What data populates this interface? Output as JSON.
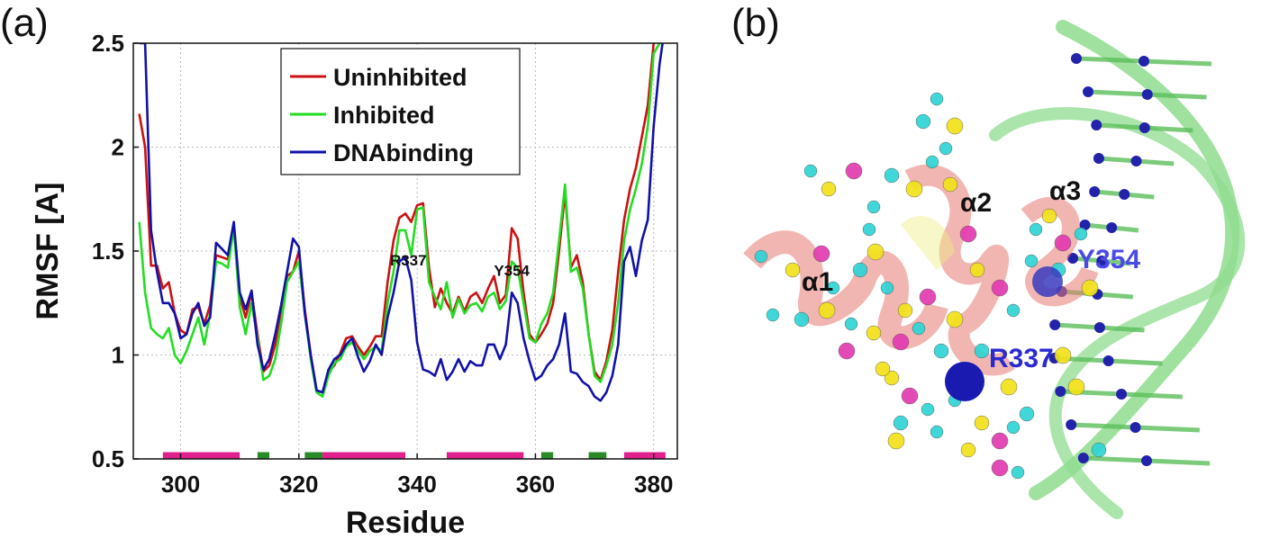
{
  "panels": {
    "a": "(a)",
    "b": "(b)"
  },
  "chart_data": {
    "type": "line",
    "xlabel": "Residue",
    "ylabel": "RMSF [A]",
    "xlim": [
      292,
      384
    ],
    "ylim": [
      0.5,
      2.5
    ],
    "xticks": [
      300,
      320,
      340,
      360,
      380
    ],
    "yticks": [
      0.5,
      1,
      1.5,
      2,
      2.5
    ],
    "ytick_labels": [
      "0.5",
      "1",
      "1.5",
      "2",
      "2.5"
    ],
    "grid": true,
    "legend_position": "top-center",
    "x": [
      293,
      294,
      295,
      296,
      297,
      298,
      299,
      300,
      301,
      302,
      303,
      304,
      305,
      306,
      307,
      308,
      309,
      310,
      311,
      312,
      313,
      314,
      315,
      316,
      317,
      318,
      319,
      320,
      321,
      322,
      323,
      324,
      325,
      326,
      327,
      328,
      329,
      330,
      331,
      332,
      333,
      334,
      335,
      336,
      337,
      338,
      339,
      340,
      341,
      342,
      343,
      344,
      345,
      346,
      347,
      348,
      349,
      350,
      351,
      352,
      353,
      354,
      355,
      356,
      357,
      358,
      359,
      360,
      361,
      362,
      363,
      364,
      365,
      366,
      367,
      368,
      369,
      370,
      371,
      372,
      373,
      374,
      375,
      376,
      377,
      378,
      379,
      380,
      381,
      382
    ],
    "series": [
      {
        "name": "Uninhibited",
        "color": "#cc1111",
        "values": [
          2.16,
          2.0,
          1.43,
          1.43,
          1.32,
          1.35,
          1.2,
          1.12,
          1.1,
          1.22,
          1.23,
          1.15,
          1.24,
          1.48,
          1.47,
          1.46,
          1.62,
          1.28,
          1.18,
          1.3,
          1.1,
          0.92,
          0.95,
          1.05,
          1.22,
          1.38,
          1.4,
          1.5,
          1.22,
          1.0,
          0.83,
          0.82,
          0.92,
          0.95,
          1.01,
          1.08,
          1.09,
          1.04,
          1.0,
          1.04,
          1.09,
          1.09,
          1.35,
          1.55,
          1.66,
          1.68,
          1.64,
          1.72,
          1.73,
          1.42,
          1.23,
          1.32,
          1.25,
          1.2,
          1.28,
          1.21,
          1.28,
          1.3,
          1.25,
          1.32,
          1.38,
          1.25,
          1.29,
          1.61,
          1.56,
          1.3,
          1.1,
          1.06,
          1.1,
          1.15,
          1.25,
          1.5,
          1.78,
          1.42,
          1.48,
          1.35,
          1.1,
          0.92,
          0.88,
          0.97,
          1.12,
          1.4,
          1.65,
          1.8,
          1.9,
          2.05,
          2.2,
          2.5,
          2.55,
          2.6
        ]
      },
      {
        "name": "Inhibited",
        "color": "#22dd22",
        "values": [
          1.64,
          1.3,
          1.13,
          1.1,
          1.08,
          1.13,
          1.0,
          0.96,
          1.02,
          1.1,
          1.18,
          1.05,
          1.2,
          1.45,
          1.44,
          1.42,
          1.61,
          1.23,
          1.1,
          1.25,
          1.08,
          0.88,
          0.9,
          0.98,
          1.15,
          1.35,
          1.4,
          1.45,
          1.2,
          0.98,
          0.82,
          0.8,
          0.9,
          0.96,
          0.98,
          1.04,
          1.06,
          1.02,
          0.98,
          1.02,
          1.04,
          1.02,
          1.25,
          1.4,
          1.6,
          1.6,
          1.48,
          1.7,
          1.71,
          1.35,
          1.28,
          1.22,
          1.35,
          1.18,
          1.27,
          1.2,
          1.24,
          1.25,
          1.21,
          1.28,
          1.3,
          1.22,
          1.26,
          1.45,
          1.42,
          1.25,
          1.08,
          1.06,
          1.15,
          1.2,
          1.3,
          1.55,
          1.82,
          1.4,
          1.42,
          1.32,
          1.1,
          0.9,
          0.87,
          0.95,
          1.05,
          1.25,
          1.55,
          1.7,
          1.8,
          1.92,
          2.1,
          2.45,
          2.5,
          2.6
        ]
      },
      {
        "name": "DNAbinding",
        "color": "#1111aa",
        "values": [
          2.5,
          2.5,
          1.6,
          1.4,
          1.25,
          1.25,
          1.2,
          1.08,
          1.1,
          1.2,
          1.25,
          1.14,
          1.18,
          1.54,
          1.51,
          1.48,
          1.64,
          1.3,
          1.22,
          1.31,
          1.05,
          0.93,
          0.98,
          1.1,
          1.24,
          1.4,
          1.56,
          1.52,
          1.2,
          1.0,
          0.83,
          0.82,
          0.93,
          0.98,
          1.0,
          1.05,
          1.08,
          0.99,
          0.92,
          0.97,
          1.05,
          1.0,
          1.18,
          1.3,
          1.45,
          1.47,
          1.36,
          1.06,
          0.93,
          0.92,
          0.9,
          0.98,
          0.88,
          0.92,
          0.98,
          0.92,
          0.97,
          0.95,
          0.95,
          1.05,
          1.05,
          0.98,
          1.05,
          1.3,
          1.25,
          1.08,
          0.97,
          0.88,
          0.9,
          0.95,
          0.98,
          1.05,
          1.2,
          0.92,
          0.91,
          0.87,
          0.85,
          0.8,
          0.78,
          0.82,
          0.9,
          1.05,
          1.45,
          1.52,
          1.38,
          1.55,
          1.65,
          2.1,
          2.4,
          2.6
        ]
      }
    ],
    "annotations": [
      {
        "text": "R337",
        "x": 338.5,
        "y": 1.43
      },
      {
        "text": "Y354",
        "x": 356,
        "y": 1.38
      }
    ],
    "secondary_structure": [
      {
        "x0": 297,
        "x1": 310,
        "color": "#e0208c"
      },
      {
        "x0": 313,
        "x1": 315,
        "color": "#2a8a2a"
      },
      {
        "x0": 321,
        "x1": 324,
        "color": "#2a8a2a"
      },
      {
        "x0": 324,
        "x1": 338,
        "color": "#e0208c"
      },
      {
        "x0": 345,
        "x1": 358,
        "color": "#e0208c"
      },
      {
        "x0": 361,
        "x1": 363,
        "color": "#2a8a2a"
      },
      {
        "x0": 369,
        "x1": 372,
        "color": "#2a8a2a"
      },
      {
        "x0": 375,
        "x1": 382,
        "color": "#e0208c"
      }
    ]
  },
  "structure": {
    "helix_labels": [
      "α1",
      "α2",
      "α3"
    ],
    "residue_labels": [
      "Y354",
      "R337"
    ],
    "residue_label_color": "#3b3bdd",
    "helix_color": "#e87a72",
    "dna_color": "#7ed67e"
  }
}
